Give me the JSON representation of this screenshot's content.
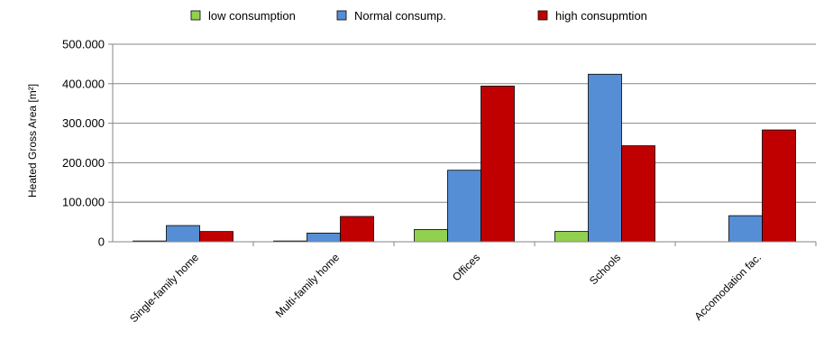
{
  "chart_data": {
    "type": "bar",
    "categories": [
      "Single-family home",
      "Multi-family home",
      "Offices",
      "Schools",
      "Accomodation fac."
    ],
    "series": [
      {
        "name": "low consumption",
        "color": "#92d050",
        "values": [
          2000,
          2000,
          31000,
          26000,
          0
        ]
      },
      {
        "name": "Normal consump.",
        "color": "#558ed5",
        "values": [
          41000,
          22000,
          181000,
          424000,
          66000
        ]
      },
      {
        "name": "high consupmtion",
        "color": "#c00000",
        "values": [
          26000,
          64000,
          394000,
          243000,
          283000
        ]
      }
    ],
    "title": "",
    "xlabel": "",
    "ylabel": "Heated Gross Area [m²]",
    "ylim": [
      0,
      500000
    ],
    "yticks": [
      0,
      100000,
      200000,
      300000,
      400000,
      500000
    ],
    "ytick_labels": [
      "0",
      "100.000",
      "200.000",
      "300.000",
      "400.000",
      "500.000"
    ],
    "grid": true,
    "legend_position": "top"
  }
}
